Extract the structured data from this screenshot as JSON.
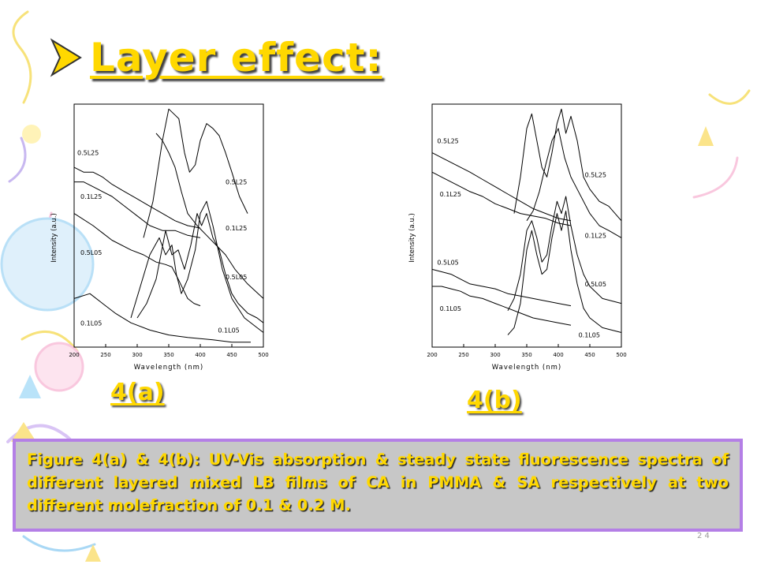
{
  "slide": {
    "title": "Layer effect:",
    "caption": "Figure 4(a) & 4(b):  UV-Vis absorption & steady state fluorescence spectra of different layered mixed LB films of CA in PMMA & SA respectively at two different molefraction of 0.1 & 0.2 M.",
    "slide_number": "2 4",
    "colors": {
      "title": "#ffd800",
      "caption_bg": "#c7c7c7",
      "caption_border": "#b47fe6"
    },
    "icons": {
      "bullet": "arrow-bullet-icon"
    }
  },
  "chart_data": [
    {
      "type": "line",
      "panel_label": "4(a)",
      "xlabel": "Wavelength (nm)",
      "ylabel": "Intensity (a.u.)",
      "xlim": [
        200,
        500
      ],
      "xticks": [
        200,
        250,
        300,
        350,
        400,
        450,
        500
      ],
      "ylim": [
        0,
        100
      ],
      "series": [
        {
          "name": "0.5L25",
          "kind": "absorption",
          "x": [
            200,
            215,
            230,
            245,
            260,
            280,
            300,
            320,
            340,
            360,
            380,
            400
          ],
          "y": [
            74,
            72,
            72,
            70,
            67,
            64,
            61,
            58,
            55,
            52,
            50,
            49
          ]
        },
        {
          "name": "0.1L25",
          "kind": "absorption",
          "x": [
            200,
            215,
            230,
            245,
            260,
            280,
            300,
            320,
            340,
            360,
            380,
            400
          ],
          "y": [
            68,
            68,
            66,
            64,
            62,
            58,
            54,
            50,
            48,
            48,
            46,
            45
          ]
        },
        {
          "name": "0.5L05",
          "kind": "absorption",
          "x": [
            200,
            230,
            260,
            290,
            310,
            330,
            345,
            355,
            365,
            380,
            390,
            400
          ],
          "y": [
            55,
            50,
            44,
            40,
            38,
            35,
            34,
            33,
            28,
            20,
            18,
            17
          ]
        },
        {
          "name": "0.1L05",
          "kind": "absorption",
          "x": [
            200,
            225,
            245,
            265,
            290,
            320,
            350,
            380,
            420,
            450,
            480
          ],
          "y": [
            20,
            22,
            18,
            14,
            10,
            7,
            5,
            4,
            3,
            2,
            2
          ]
        },
        {
          "name": "0.5L25",
          "kind": "fluorescence",
          "x": [
            310,
            325,
            340,
            350,
            358,
            366,
            375,
            383,
            392,
            400,
            410,
            420,
            430,
            440,
            450,
            462,
            475
          ],
          "y": [
            45,
            60,
            85,
            98,
            96,
            94,
            80,
            72,
            75,
            85,
            92,
            90,
            87,
            80,
            72,
            62,
            55
          ]
        },
        {
          "name": "0.1L25",
          "kind": "fluorescence",
          "x": [
            330,
            340,
            350,
            360,
            370,
            380,
            395,
            410,
            425,
            440,
            455,
            475,
            500
          ],
          "y": [
            88,
            85,
            80,
            74,
            64,
            55,
            50,
            46,
            42,
            38,
            32,
            26,
            20
          ]
        },
        {
          "name": "0.5L05",
          "kind": "fluorescence",
          "x": [
            300,
            315,
            330,
            345,
            355,
            365,
            375,
            385,
            395,
            402,
            410,
            420,
            430,
            440,
            450,
            460,
            475,
            490,
            500
          ],
          "y": [
            12,
            18,
            28,
            48,
            38,
            40,
            32,
            42,
            55,
            50,
            55,
            45,
            40,
            30,
            22,
            18,
            14,
            12,
            10
          ]
        },
        {
          "name": "0.1L05",
          "kind": "fluorescence",
          "x": [
            290,
            305,
            320,
            335,
            345,
            355,
            362,
            370,
            380,
            392,
            400,
            410,
            420,
            435,
            450,
            470,
            490,
            500
          ],
          "y": [
            12,
            25,
            38,
            45,
            38,
            42,
            30,
            22,
            28,
            40,
            55,
            60,
            50,
            32,
            20,
            12,
            8,
            6
          ]
        }
      ],
      "annotations": [
        {
          "text": "0.5L25",
          "x": 205,
          "y": 79
        },
        {
          "text": "0.1L25",
          "x": 210,
          "y": 61
        },
        {
          "text": "0.5L05",
          "x": 210,
          "y": 38
        },
        {
          "text": "0.1L05",
          "x": 210,
          "y": 9
        },
        {
          "text": "0.5L25",
          "x": 440,
          "y": 67
        },
        {
          "text": "0.1L25",
          "x": 440,
          "y": 48
        },
        {
          "text": "0.5L05",
          "x": 440,
          "y": 28
        },
        {
          "text": "0.1L05",
          "x": 428,
          "y": 6
        }
      ],
      "grid": false
    },
    {
      "type": "line",
      "panel_label": "4(b)",
      "xlabel": "Wavelength (nm)",
      "ylabel": "Intensity (a.u.)",
      "xlim": [
        200,
        500
      ],
      "xticks": [
        200,
        250,
        300,
        350,
        400,
        450,
        500
      ],
      "ylim": [
        0,
        100
      ],
      "series": [
        {
          "name": "0.5L25",
          "kind": "absorption",
          "x": [
            200,
            215,
            230,
            245,
            260,
            280,
            300,
            320,
            340,
            360,
            380,
            400,
            420
          ],
          "y": [
            80,
            78,
            76,
            74,
            72,
            69,
            66,
            63,
            60,
            57,
            55,
            53,
            52
          ]
        },
        {
          "name": "0.1L25",
          "kind": "absorption",
          "x": [
            200,
            215,
            230,
            245,
            260,
            280,
            300,
            320,
            340,
            360,
            380,
            400,
            420
          ],
          "y": [
            72,
            70,
            68,
            66,
            64,
            62,
            59,
            57,
            55,
            54,
            53,
            51,
            50
          ]
        },
        {
          "name": "0.5L05",
          "kind": "absorption",
          "x": [
            200,
            215,
            230,
            245,
            260,
            280,
            300,
            320,
            340,
            360,
            380,
            400,
            420
          ],
          "y": [
            32,
            31,
            30,
            28,
            26,
            25,
            24,
            22,
            21,
            20,
            19,
            18,
            17
          ]
        },
        {
          "name": "0.1L05",
          "kind": "absorption",
          "x": [
            200,
            215,
            230,
            245,
            260,
            280,
            300,
            320,
            340,
            360,
            380,
            400,
            420
          ],
          "y": [
            25,
            25,
            24,
            23,
            21,
            20,
            18,
            16,
            14,
            12,
            11,
            10,
            9
          ]
        },
        {
          "name": "0.5L25",
          "kind": "fluorescence",
          "x": [
            330,
            340,
            350,
            358,
            366,
            374,
            382,
            390,
            398,
            405,
            412,
            420,
            430,
            440,
            450,
            465,
            480,
            500
          ],
          "y": [
            55,
            70,
            90,
            96,
            85,
            74,
            70,
            80,
            92,
            98,
            88,
            95,
            85,
            70,
            65,
            60,
            58,
            52
          ]
        },
        {
          "name": "0.1L25",
          "kind": "fluorescence",
          "x": [
            350,
            360,
            370,
            380,
            390,
            400,
            410,
            420,
            430,
            440,
            450,
            465,
            480,
            500
          ],
          "y": [
            52,
            56,
            64,
            75,
            85,
            90,
            78,
            70,
            65,
            60,
            55,
            50,
            48,
            45
          ]
        },
        {
          "name": "0.5L05",
          "kind": "fluorescence",
          "x": [
            320,
            330,
            340,
            350,
            358,
            366,
            374,
            382,
            390,
            398,
            405,
            412,
            420,
            430,
            440,
            450,
            470,
            500
          ],
          "y": [
            15,
            20,
            30,
            48,
            52,
            45,
            35,
            38,
            50,
            60,
            55,
            62,
            50,
            38,
            30,
            25,
            20,
            18
          ]
        },
        {
          "name": "0.1L05",
          "kind": "fluorescence",
          "x": [
            320,
            330,
            340,
            350,
            358,
            366,
            374,
            382,
            390,
            398,
            405,
            412,
            420,
            430,
            440,
            450,
            470,
            500
          ],
          "y": [
            5,
            8,
            18,
            40,
            48,
            38,
            30,
            32,
            45,
            55,
            48,
            56,
            40,
            26,
            16,
            12,
            8,
            6
          ]
        }
      ],
      "annotations": [
        {
          "text": "0.5L25",
          "x": 208,
          "y": 84
        },
        {
          "text": "0.1L25",
          "x": 212,
          "y": 62
        },
        {
          "text": "0.5L05",
          "x": 208,
          "y": 34
        },
        {
          "text": "0.1L05",
          "x": 212,
          "y": 15
        },
        {
          "text": "0.5L25",
          "x": 442,
          "y": 70
        },
        {
          "text": "0.1L25",
          "x": 442,
          "y": 45
        },
        {
          "text": "0.5L05",
          "x": 442,
          "y": 25
        },
        {
          "text": "0.1L05",
          "x": 432,
          "y": 4
        }
      ],
      "grid": false
    }
  ]
}
